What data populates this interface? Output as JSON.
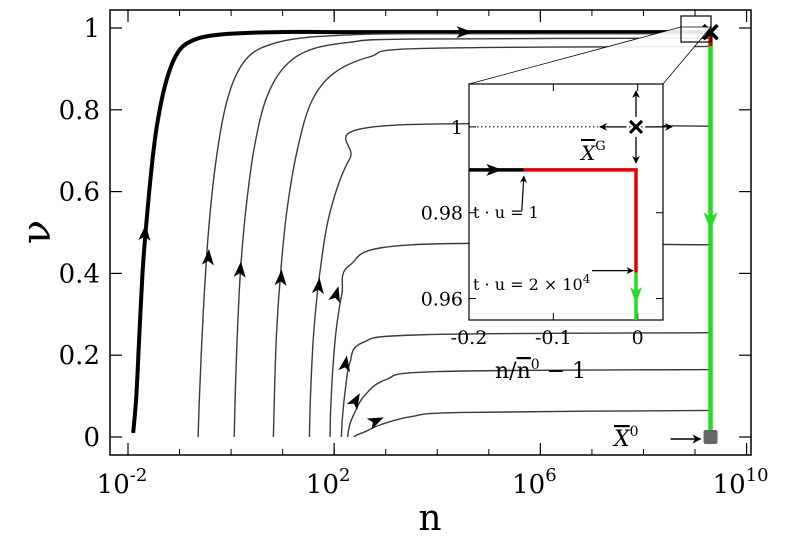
{
  "chart_data": {
    "type": "line",
    "xlabel": "n",
    "ylabel": "ν",
    "x_scale": "log10",
    "xlim": [
      0.01,
      10000000000
    ],
    "ylim": [
      0,
      1
    ],
    "x_ticks": [
      {
        "value": 0.01,
        "base": "10",
        "exp": "-2"
      },
      {
        "value": 100,
        "base": "10",
        "exp": "2"
      },
      {
        "value": 1000000,
        "base": "10",
        "exp": "6"
      },
      {
        "value": 10000000000,
        "base": "10",
        "exp": "10"
      }
    ],
    "y_ticks": [
      {
        "value": 0,
        "label": "0"
      },
      {
        "value": 0.2,
        "label": "0.2"
      },
      {
        "value": 0.4,
        "label": "0.4"
      },
      {
        "value": 0.6,
        "label": "0.6"
      },
      {
        "value": 0.8,
        "label": "0.8"
      },
      {
        "value": 1,
        "label": "1"
      }
    ],
    "series": [
      {
        "style": "thick-black",
        "color": "#000000",
        "points": [
          [
            0.0126,
            0.01
          ],
          [
            0.0145,
            0.1
          ],
          [
            0.0166,
            0.25
          ],
          [
            0.0191,
            0.4
          ],
          [
            0.0219,
            0.5
          ],
          [
            0.0288,
            0.66
          ],
          [
            0.0363,
            0.76
          ],
          [
            0.0525,
            0.86
          ],
          [
            0.0832,
            0.93
          ],
          [
            0.151,
            0.965
          ],
          [
            0.51,
            0.983
          ],
          [
            7.94,
            0.99
          ],
          [
            501,
            0.99
          ],
          [
            50100000,
            0.99
          ],
          [
            2000000000,
            0.99
          ]
        ],
        "arrows": [
          [
            0.0214,
            0.5
          ],
          [
            33900,
            0.99
          ]
        ]
      },
      {
        "style": "thin-gray",
        "color": "#3a3a3a",
        "points": [
          [
            0.229,
            0
          ],
          [
            0.24,
            0.08
          ],
          [
            0.263,
            0.2
          ],
          [
            0.302,
            0.35
          ],
          [
            0.363,
            0.5
          ],
          [
            0.479,
            0.65
          ],
          [
            0.724,
            0.79
          ],
          [
            1.2,
            0.88
          ],
          [
            2.4,
            0.935
          ],
          [
            6.61,
            0.962
          ],
          [
            25.1,
            0.976
          ],
          [
            200,
            0.983
          ],
          [
            3160,
            0.986
          ],
          [
            2000000000,
            0.986
          ]
        ],
        "arrows": [
          [
            0.363,
            0.44
          ]
        ]
      },
      {
        "style": "thin-gray",
        "color": "#3a3a3a",
        "points": [
          [
            1.15,
            0
          ],
          [
            1.2,
            0.1
          ],
          [
            1.32,
            0.25
          ],
          [
            1.51,
            0.4
          ],
          [
            1.91,
            0.55
          ],
          [
            2.75,
            0.7
          ],
          [
            4.57,
            0.82
          ],
          [
            10,
            0.9
          ],
          [
            31.6,
            0.945
          ],
          [
            200,
            0.965
          ],
          [
            3160,
            0.973
          ],
          [
            2000000000,
            0.975
          ]
        ],
        "arrows": [
          [
            1.51,
            0.41
          ]
        ]
      },
      {
        "style": "thin-gray",
        "color": "#3a3a3a",
        "points": [
          [
            6.61,
            0
          ],
          [
            6.92,
            0.1
          ],
          [
            7.59,
            0.25
          ],
          [
            9.12,
            0.4
          ],
          [
            12,
            0.55
          ],
          [
            19.1,
            0.7
          ],
          [
            36.3,
            0.82
          ],
          [
            100,
            0.89
          ],
          [
            501,
            0.93
          ],
          [
            5010,
            0.95
          ],
          [
            2000000000,
            0.955
          ]
        ],
        "arrows": [
          [
            9.33,
            0.39
          ]
        ]
      },
      {
        "style": "thin-gray",
        "color": "#3a3a3a",
        "points": [
          [
            33.1,
            0
          ],
          [
            34.7,
            0.1
          ],
          [
            39.8,
            0.25
          ],
          [
            52.5,
            0.4
          ],
          [
            83.2,
            0.55
          ],
          [
            200,
            0.68
          ],
          [
            794,
            0.76
          ],
          [
            2000000000,
            0.76
          ]
        ],
        "arrows": [
          [
            50.1,
            0.37
          ]
        ]
      },
      {
        "style": "thin-gray",
        "color": "#3a3a3a",
        "points": [
          [
            83.2,
            0
          ],
          [
            85.1,
            0.06
          ],
          [
            93.3,
            0.16
          ],
          [
            109,
            0.26
          ],
          [
            141,
            0.35
          ],
          [
            200,
            0.42
          ],
          [
            3160,
            0.47
          ],
          [
            2000000000,
            0.47
          ]
        ],
        "arrows": [
          [
            110,
            0.35
          ]
        ]
      },
      {
        "style": "thin-gray",
        "color": "#3a3a3a",
        "points": [
          [
            138,
            0
          ],
          [
            145,
            0.05
          ],
          [
            166,
            0.12
          ],
          [
            200,
            0.18
          ],
          [
            346,
            0.23
          ],
          [
            5010,
            0.25
          ],
          [
            2000000000,
            0.255
          ]
        ],
        "arrows": [
          [
            166,
            0.18
          ]
        ]
      },
      {
        "style": "thin-gray",
        "color": "#3a3a3a",
        "points": [
          [
            182,
            0
          ],
          [
            200,
            0.03
          ],
          [
            251,
            0.06
          ],
          [
            380,
            0.1
          ],
          [
            1000,
            0.14
          ],
          [
            10000,
            0.16
          ],
          [
            2000000000,
            0.165
          ]
        ],
        "arrows": [
          [
            263,
            0.09
          ]
        ]
      },
      {
        "style": "thin-gray",
        "color": "#3a3a3a",
        "points": [
          [
            240,
            0
          ],
          [
            275,
            0.005
          ],
          [
            398,
            0.013
          ],
          [
            794,
            0.03
          ],
          [
            3160,
            0.05
          ],
          [
            31600,
            0.06
          ],
          [
            2000000000,
            0.065
          ]
        ],
        "arrows": [
          [
            661,
            0.04
          ]
        ]
      }
    ],
    "green_path": {
      "color": "#22dd22",
      "x": 2000000000,
      "y_from": 0.99,
      "y_to": 0,
      "arrows": [
        0.53
      ]
    },
    "end_marker": {
      "x": 2000000000,
      "y": 0.99,
      "symbol": "×"
    },
    "start_marker": {
      "x": 2000000000,
      "y": 0,
      "color": "#666666"
    },
    "labels": [
      {
        "text": "X",
        "sup": "0",
        "overline": true,
        "x": 2000000000,
        "y": 0
      }
    ],
    "inset": {
      "xlabel_parts": [
        "n/",
        "n",
        "0",
        " − 1"
      ],
      "xlim": [
        -0.2,
        0.03
      ],
      "ylim": [
        0.955,
        1.01
      ],
      "x_ticks": [
        {
          "value": -0.2,
          "label": "-0.2"
        },
        {
          "value": -0.1,
          "label": "-0.1"
        },
        {
          "value": 0,
          "label": "0"
        }
      ],
      "y_ticks": [
        {
          "value": 0.96,
          "label": "0.96"
        },
        {
          "value": 0.98,
          "label": "0.98"
        },
        {
          "value": 1,
          "label": "1"
        }
      ],
      "dotted_line_y": 1,
      "black_path": [
        [
          -0.2,
          0.99
        ],
        [
          -0.135,
          0.99
        ]
      ],
      "red_path": [
        [
          -0.135,
          0.99
        ],
        [
          -0.002,
          0.99
        ],
        [
          -0.002,
          0.966
        ]
      ],
      "green_path": [
        [
          -0.002,
          0.966
        ],
        [
          -0.002,
          0.955
        ]
      ],
      "black_arrow": [
        -0.17,
        0.99
      ],
      "green_arrow": [
        -0.002,
        0.961
      ],
      "fixed_point": {
        "x": -0.002,
        "y": 1,
        "label": "X",
        "sup": "G"
      },
      "annotations": [
        {
          "text": "t · u = 1"
        },
        {
          "text": "t · u = 2 × 10",
          "sup": "4"
        }
      ]
    }
  }
}
